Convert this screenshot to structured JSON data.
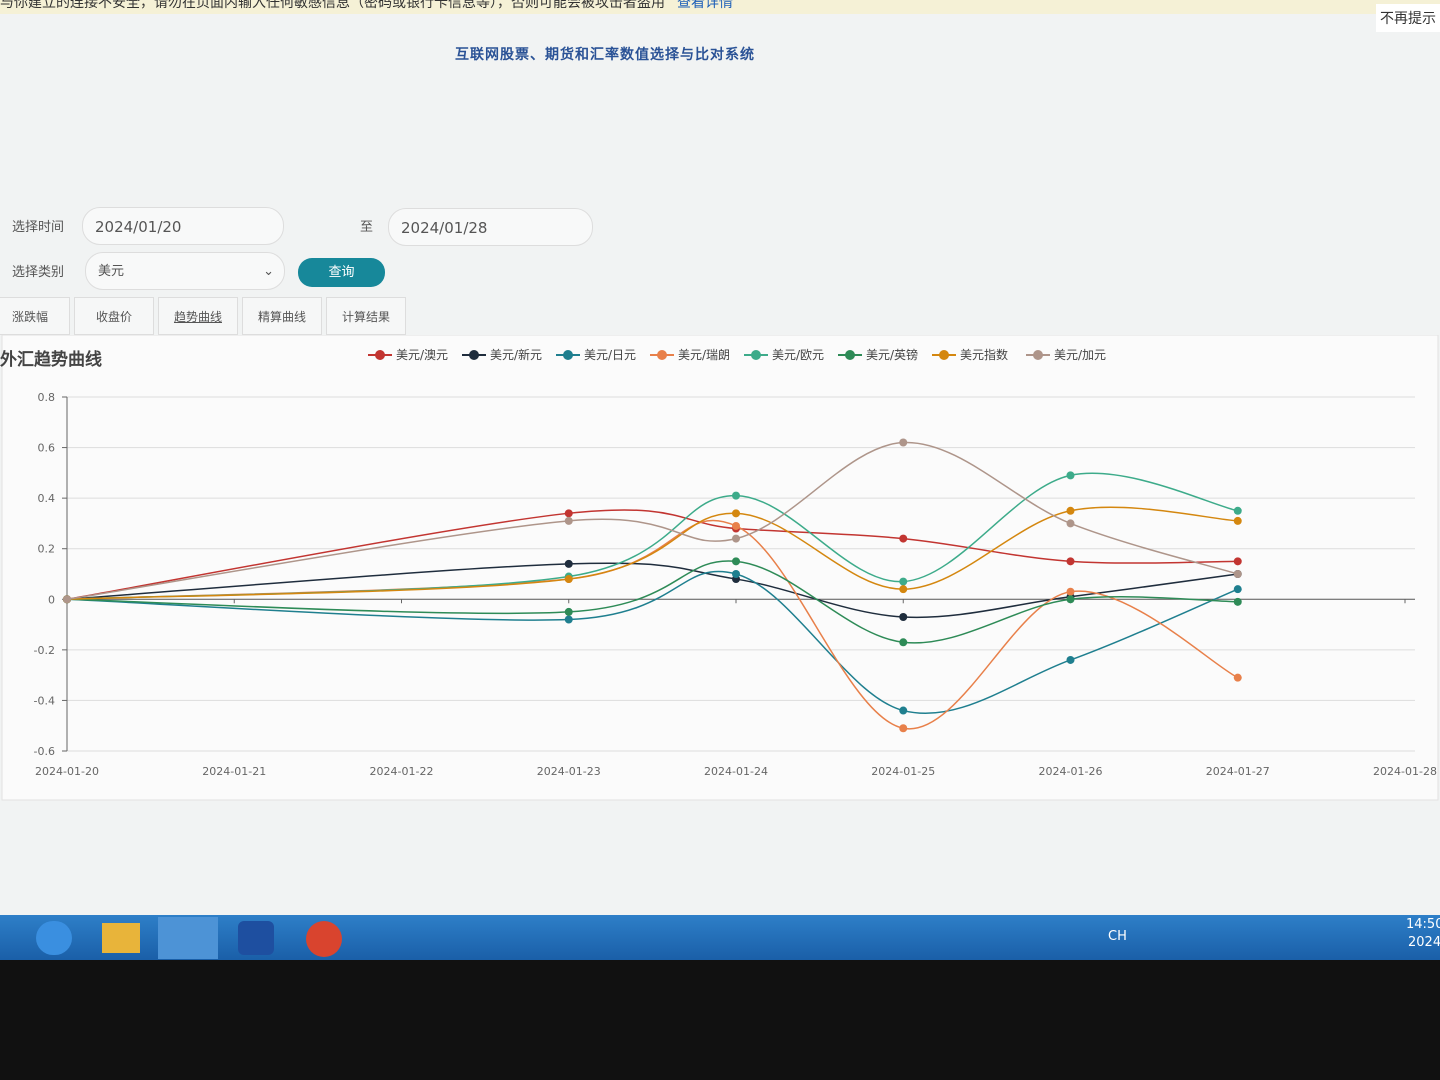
{
  "banner": {
    "message": "与你建立的连接不安全，请勿在页面内输入任何敏感信息（密码或银行卡信息等），否则可能会被攻击者盗用",
    "link": "查看详情",
    "dismiss": "不再提示"
  },
  "header": {
    "title": "互联网股票、期货和汇率数值选择与比对系统"
  },
  "form": {
    "time_label": "选择时间",
    "start_date": "2024/01/20",
    "to_label": "至",
    "end_date": "2024/01/28",
    "category_label": "选择类别",
    "category": "美元",
    "query_button": "查询"
  },
  "tabs": [
    "涨跌幅",
    "收盘价",
    "趋势曲线",
    "精算曲线",
    "计算结果"
  ],
  "chart_data": {
    "type": "line",
    "title": "外汇趋势曲线",
    "x": [
      "2024-01-20",
      "2024-01-23",
      "2024-01-24",
      "2024-01-25",
      "2024-01-26",
      "2024-01-27"
    ],
    "xlim": [
      "2024-01-20",
      "2024-01-28"
    ],
    "xticks": [
      "2024-01-20",
      "2024-01-21",
      "2024-01-22",
      "2024-01-23",
      "2024-01-24",
      "2024-01-25",
      "2024-01-26",
      "2024-01-27",
      "2024-01-28"
    ],
    "ylim": [
      -0.6,
      0.8
    ],
    "yticks": [
      -0.6,
      -0.4,
      -0.2,
      0,
      0.2,
      0.4,
      0.6,
      0.8
    ],
    "grid": true,
    "smooth": true,
    "series": [
      {
        "name": "美元/澳元",
        "color": "#c23531",
        "values": [
          0,
          0.34,
          0.28,
          0.24,
          0.15,
          0.15
        ]
      },
      {
        "name": "美元/新元",
        "color": "#1f2d3d",
        "values": [
          0,
          0.14,
          0.08,
          -0.07,
          0.01,
          0.1
        ]
      },
      {
        "name": "美元/日元",
        "color": "#1f7f8f",
        "values": [
          0,
          -0.08,
          0.1,
          -0.44,
          -0.24,
          0.04
        ]
      },
      {
        "name": "美元/瑞朗",
        "color": "#e8804a",
        "values": [
          0,
          0.08,
          0.29,
          -0.51,
          0.03,
          -0.31
        ]
      },
      {
        "name": "美元/欧元",
        "color": "#3dab8a",
        "values": [
          0,
          0.09,
          0.41,
          0.07,
          0.49,
          0.35
        ]
      },
      {
        "name": "美元/英镑",
        "color": "#2e8b57",
        "values": [
          0,
          -0.05,
          0.15,
          -0.17,
          0.0,
          -0.01
        ]
      },
      {
        "name": "美元指数",
        "color": "#d4870f",
        "values": [
          0,
          0.08,
          0.34,
          0.04,
          0.35,
          0.31
        ]
      },
      {
        "name": "美元/加元",
        "color": "#ae958a",
        "values": [
          0,
          0.31,
          0.24,
          0.62,
          0.3,
          0.1
        ]
      }
    ]
  },
  "taskbar": {
    "language": "CH",
    "time": "14:50",
    "date": "2024"
  }
}
